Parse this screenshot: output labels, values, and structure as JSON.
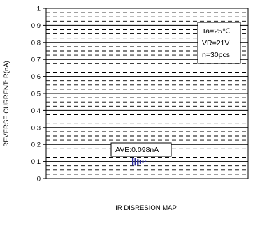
{
  "chart_data": {
    "type": "scatter",
    "title": "",
    "xlabel": "IR DISRESION MAP",
    "ylabel": "REVERSE CURRENT:IR(nA)",
    "ylim": [
      0,
      1
    ],
    "yticks": [
      "0",
      "0.1",
      "0.2",
      "0.3",
      "0.4",
      "0.5",
      "0.6",
      "0.7",
      "0.8",
      "0.9",
      "1"
    ],
    "grid": true,
    "conditions": [
      "Ta=25℃",
      "VR=21V",
      "n=30pcs"
    ],
    "average_label": "AVE:0.098nA",
    "series": [
      {
        "values": [
          {
            "x": 0,
            "y": 0.12
          },
          {
            "x": 0,
            "y": 0.115
          },
          {
            "x": 0,
            "y": 0.11
          },
          {
            "x": 0,
            "y": 0.105
          },
          {
            "x": 0,
            "y": 0.1
          },
          {
            "x": 0,
            "y": 0.095
          },
          {
            "x": 0,
            "y": 0.09
          },
          {
            "x": 0,
            "y": 0.085
          },
          {
            "x": 0,
            "y": 0.08
          },
          {
            "x": 1,
            "y": 0.115
          },
          {
            "x": 1,
            "y": 0.11
          },
          {
            "x": 1,
            "y": 0.105
          },
          {
            "x": 1,
            "y": 0.1
          },
          {
            "x": 1,
            "y": 0.095
          },
          {
            "x": 1,
            "y": 0.09
          },
          {
            "x": 1,
            "y": 0.085
          },
          {
            "x": 1,
            "y": 0.08
          },
          {
            "x": 2,
            "y": 0.11
          },
          {
            "x": 2,
            "y": 0.105
          },
          {
            "x": 2,
            "y": 0.1
          },
          {
            "x": 2,
            "y": 0.095
          },
          {
            "x": 2,
            "y": 0.09
          },
          {
            "x": 2,
            "y": 0.085
          },
          {
            "x": 3,
            "y": 0.105
          },
          {
            "x": 3,
            "y": 0.1
          },
          {
            "x": 3,
            "y": 0.095
          },
          {
            "x": 3,
            "y": 0.09
          },
          {
            "x": 4,
            "y": 0.1
          },
          {
            "x": 4,
            "y": 0.095
          },
          {
            "x": 5,
            "y": 0.1
          }
        ],
        "color": "#2a2a9a"
      }
    ]
  }
}
